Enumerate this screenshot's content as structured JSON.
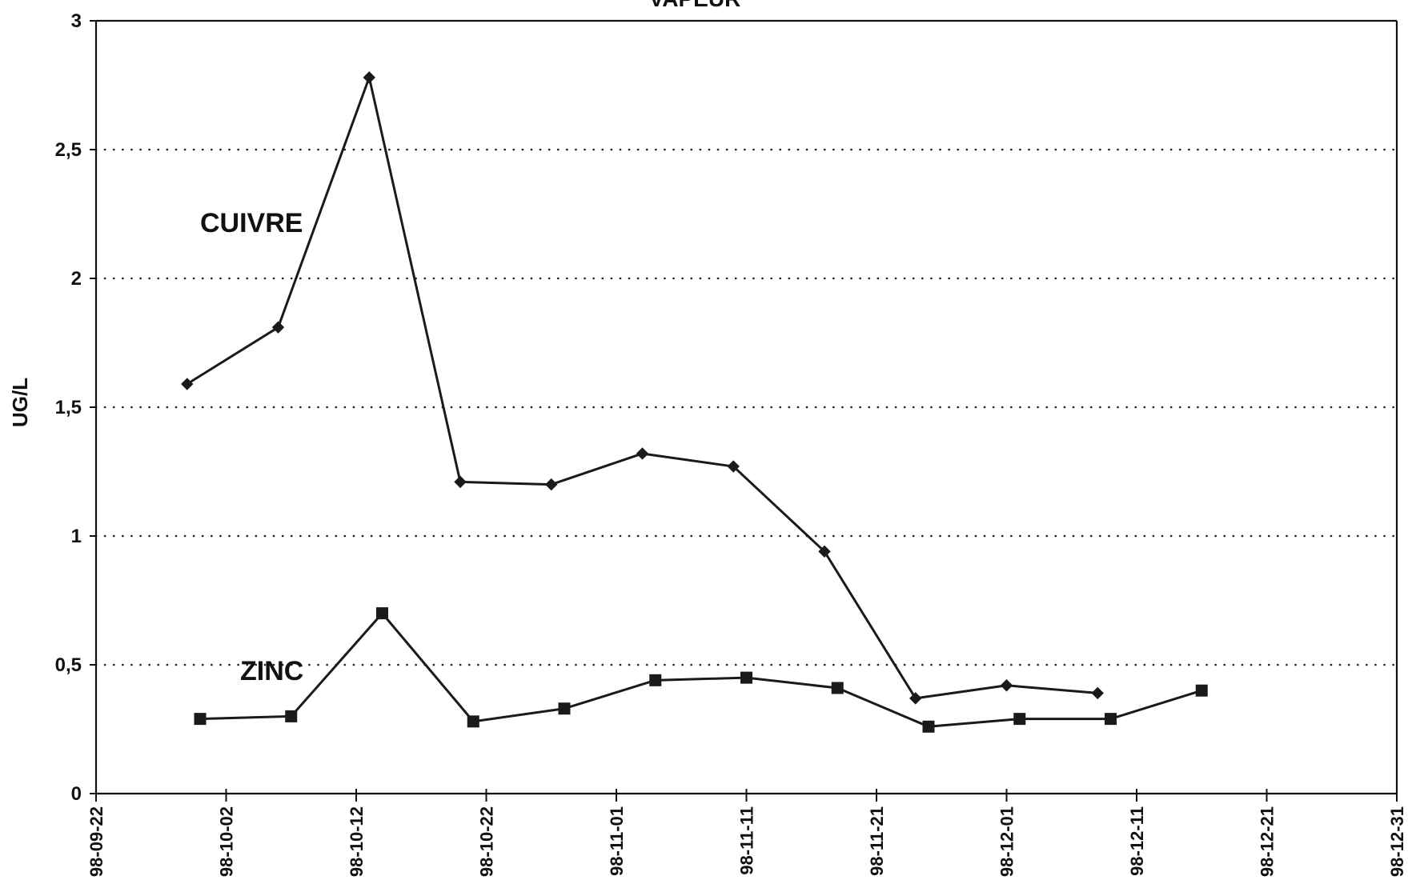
{
  "chart_data": {
    "type": "line",
    "title": "VAPEUR",
    "xlabel": "",
    "ylabel": "UG/L",
    "ylim": [
      0,
      3
    ],
    "yticks": [
      0,
      0.5,
      1,
      1.5,
      2,
      2.5,
      3
    ],
    "ytick_labels": [
      "0",
      "0,5",
      "1",
      "1,5",
      "2",
      "2,5",
      "3"
    ],
    "xlim": [
      "1998-09-22",
      "1998-12-31"
    ],
    "xticks": [
      "1998-09-22",
      "1998-10-02",
      "1998-10-12",
      "1998-10-22",
      "1998-11-01",
      "1998-11-11",
      "1998-11-21",
      "1998-12-01",
      "1998-12-11",
      "1998-12-21",
      "1998-12-31"
    ],
    "xtick_labels": [
      "98-09-22",
      "98-10-02",
      "98-10-12",
      "98-10-22",
      "98-11-01",
      "98-11-11",
      "98-11-21",
      "98-12-01",
      "98-12-11",
      "98-12-21",
      "98-12-31"
    ],
    "grid": "horizontal-dotted",
    "series": [
      {
        "name": "CUIVRE",
        "marker": "diamond",
        "x": [
          "1998-09-29",
          "1998-10-06",
          "1998-10-13",
          "1998-10-20",
          "1998-10-27",
          "1998-11-03",
          "1998-11-10",
          "1998-11-17",
          "1998-11-24",
          "1998-12-01",
          "1998-12-08"
        ],
        "values": [
          1.59,
          1.81,
          2.78,
          1.21,
          1.2,
          1.32,
          1.27,
          0.94,
          0.37,
          0.42,
          0.39
        ]
      },
      {
        "name": "ZINC",
        "marker": "square",
        "x": [
          "1998-09-30",
          "1998-10-07",
          "1998-10-14",
          "1998-10-21",
          "1998-10-28",
          "1998-11-04",
          "1998-11-11",
          "1998-11-18",
          "1998-11-25",
          "1998-12-02",
          "1998-12-09",
          "1998-12-16"
        ],
        "values": [
          0.29,
          0.3,
          0.7,
          0.28,
          0.33,
          0.44,
          0.45,
          0.41,
          0.26,
          0.29,
          0.29,
          0.4
        ]
      }
    ]
  }
}
